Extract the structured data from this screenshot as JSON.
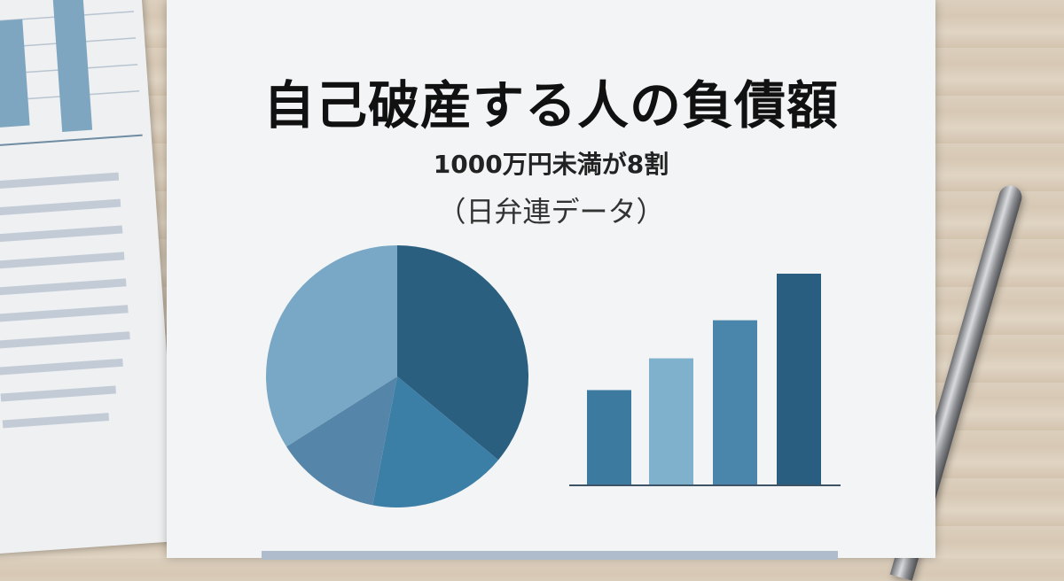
{
  "title": "自己破産する人の負債額",
  "subtitle": "1000万円未満が8割",
  "source": "（日弁連データ）",
  "colors": {
    "dark": "#2b5f80",
    "medium": "#3c7fa6",
    "mid": "#5585a8",
    "light": "#78a8c6",
    "bar_light": "#7fb0cc"
  },
  "chart_data": [
    {
      "type": "pie",
      "values": [
        36,
        17,
        13,
        34
      ],
      "colors": [
        "#2b5f80",
        "#3c7fa6",
        "#5585a8",
        "#78a8c6"
      ]
    },
    {
      "type": "bar",
      "values": [
        45,
        60,
        78,
        100
      ],
      "colors": [
        "#3d7aa0",
        "#7fb0cc",
        "#4a86ab",
        "#2a5e80"
      ]
    }
  ]
}
